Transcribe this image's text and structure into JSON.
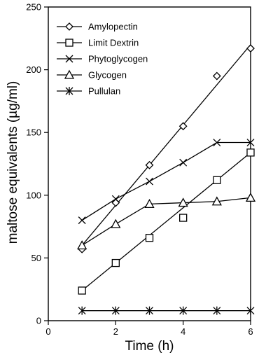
{
  "chart_data": {
    "type": "line",
    "xlabel": "Time (h)",
    "ylabel": "maltose equivalents (µg/ml)",
    "xlim": [
      0,
      6
    ],
    "ylim": [
      0,
      250
    ],
    "xticks": [
      0,
      2,
      4,
      6
    ],
    "yticks": [
      0,
      50,
      100,
      150,
      200,
      250
    ],
    "grid": false,
    "legend_position": "top-left",
    "series": [
      {
        "name": "Amylopectin",
        "marker": "diamond",
        "x": [
          1,
          2,
          3,
          4,
          5,
          6
        ],
        "y": [
          57,
          94,
          124,
          155,
          195,
          217
        ]
      },
      {
        "name": "Limit Dextrin",
        "marker": "square",
        "x": [
          1,
          2,
          3,
          4,
          5,
          6
        ],
        "y": [
          24,
          46,
          66,
          82,
          112,
          134
        ]
      },
      {
        "name": "Phytoglycogen",
        "marker": "x",
        "x": [
          1,
          2,
          3,
          4,
          5,
          6
        ],
        "y": [
          80,
          97,
          111,
          126,
          142,
          142
        ]
      },
      {
        "name": "Glycogen",
        "marker": "triangle",
        "x": [
          1,
          2,
          3,
          4,
          5,
          6
        ],
        "y": [
          60,
          77,
          93,
          94,
          95,
          98
        ]
      },
      {
        "name": "Pullulan",
        "marker": "asterisk",
        "x": [
          1,
          2,
          3,
          4,
          5,
          6
        ],
        "y": [
          8,
          8,
          8,
          8,
          8,
          8
        ]
      }
    ],
    "fit_lines": [
      {
        "series": "Amylopectin",
        "x": [
          1,
          6
        ],
        "y": [
          60,
          220
        ]
      },
      {
        "series": "Limit Dextrin",
        "x": [
          1,
          6
        ],
        "y": [
          24,
          134
        ]
      }
    ]
  }
}
